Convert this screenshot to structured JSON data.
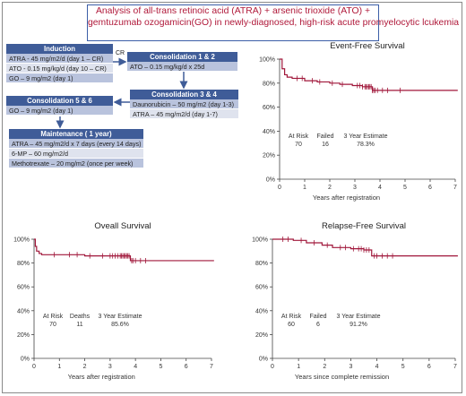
{
  "title_lines": [
    "Analysis of all-trans retinoic acid (ATRA) + arsenic trioxide (ATO) +",
    "gemtuzumab ozogamicin(GO) in newly-diagnosed, high-risk acute promyelocytic lcukemia"
  ],
  "flow": {
    "induction": {
      "title": "Induction",
      "rows": [
        "ATRA - 45 mg/m2/d (day 1 – CR)",
        "ATO - 0.15 mg/kg/d (day 10 – CR)",
        "GO – 9 mg/m2 (day 1)"
      ]
    },
    "cr_label": "CR",
    "consolidation12": {
      "title": "Consolidation 1 & 2",
      "rows": [
        "ATO – 0.15 mg/kg/d x 25d"
      ]
    },
    "consolidation34": {
      "title": "Consolidation 3 & 4",
      "rows": [
        "Daunorubicin – 50 mg/m2 (day 1-3)",
        "ATRA – 45 mg/m2/d (day 1-7)"
      ]
    },
    "consolidation56": {
      "title": "Consolidation 5 & 6",
      "rows": [
        "GO – 9 mg/m2 (day 1)"
      ]
    },
    "maintenance": {
      "title": "Maintenance ( 1 year)",
      "rows": [
        "ATRA – 45 mg/m2/d x 7 days (every 14 days)",
        "6-MP – 60 mg/m2/d",
        "Methotrexate – 20 mg/m2 (once per week)"
      ]
    }
  },
  "chart_data": [
    {
      "type": "line",
      "title": "Event-Free Survival",
      "xlabel": "Years after registration",
      "ylabel": "",
      "xlim": [
        0,
        7
      ],
      "ylim": [
        0,
        100
      ],
      "xticks": [
        "0",
        "1",
        "2",
        "3",
        "4",
        "5",
        "6",
        "7"
      ],
      "yticks": [
        "0%",
        "20%",
        "40%",
        "60%",
        "80%",
        "100%"
      ],
      "color": "#a0173a",
      "series": [
        {
          "x": [
            0,
            0.1,
            0.2,
            0.3,
            0.5,
            1.0,
            1.5,
            2.0,
            2.4,
            2.9,
            3.3,
            3.7,
            5.0,
            7.1
          ],
          "values": [
            100,
            92,
            87,
            85,
            84,
            82,
            81,
            80,
            79,
            78,
            77,
            74,
            74,
            74
          ]
        }
      ],
      "censor_x": [
        0.7,
        0.9,
        1.3,
        1.6,
        2.1,
        2.5,
        3.1,
        3.2,
        3.3,
        3.4,
        3.45,
        3.5,
        3.55,
        3.6,
        3.65,
        3.7,
        3.75,
        3.8,
        3.9,
        4.1,
        4.3,
        4.8
      ],
      "stats": {
        "at_risk_label": "At Risk",
        "at_risk": "70",
        "event_label": "Failed",
        "events": "16",
        "estimate_label": "3 Year Estimate",
        "estimate": "78.3%"
      }
    },
    {
      "type": "line",
      "title": "Oveall Survival",
      "xlabel": "Years after registration",
      "ylabel": "",
      "xlim": [
        0,
        7
      ],
      "ylim": [
        0,
        100
      ],
      "xticks": [
        "0",
        "1",
        "2",
        "3",
        "4",
        "5",
        "6",
        "7"
      ],
      "yticks": [
        "0%",
        "20%",
        "40%",
        "60%",
        "80%",
        "100%"
      ],
      "color": "#a0173a",
      "series": [
        {
          "x": [
            0,
            0.05,
            0.1,
            0.2,
            0.3,
            1.0,
            2.0,
            3.8,
            7.1
          ],
          "values": [
            100,
            94,
            90,
            88,
            87,
            87,
            86,
            82,
            82
          ]
        }
      ],
      "censor_x": [
        0.8,
        1.4,
        1.7,
        2.2,
        2.7,
        3.0,
        3.1,
        3.2,
        3.3,
        3.4,
        3.45,
        3.5,
        3.55,
        3.6,
        3.65,
        3.7,
        3.75,
        3.85,
        3.9,
        4.0,
        4.2,
        4.4
      ],
      "stats": {
        "at_risk_label": "At Risk",
        "at_risk": "70",
        "event_label": "Deaths",
        "events": "11",
        "estimate_label": "3 Year Estimate",
        "estimate": "85.6%"
      }
    },
    {
      "type": "line",
      "title": "Relapse-Free Survival",
      "xlabel": "Years since complete remission",
      "ylabel": "",
      "xlim": [
        0,
        7
      ],
      "ylim": [
        0,
        100
      ],
      "xticks": [
        "0",
        "1",
        "2",
        "3",
        "4",
        "5",
        "6",
        "7"
      ],
      "yticks": [
        "0%",
        "20%",
        "40%",
        "60%",
        "80%",
        "100%"
      ],
      "color": "#a0173a",
      "series": [
        {
          "x": [
            0,
            0.8,
            1.3,
            1.9,
            2.3,
            3.0,
            3.5,
            3.8,
            7.1
          ],
          "values": [
            100,
            99,
            97,
            95,
            93,
            92,
            91,
            86,
            86
          ]
        }
      ],
      "censor_x": [
        0.4,
        0.6,
        1.1,
        1.6,
        2.1,
        2.6,
        2.8,
        3.1,
        3.3,
        3.4,
        3.5,
        3.6,
        3.7,
        3.9,
        4.0,
        4.2,
        4.4,
        4.6
      ],
      "stats": {
        "at_risk_label": "At Risk",
        "at_risk": "60",
        "event_label": "Failed",
        "events": "6",
        "estimate_label": "3 Year Estimate",
        "estimate": "91.2%"
      }
    }
  ]
}
